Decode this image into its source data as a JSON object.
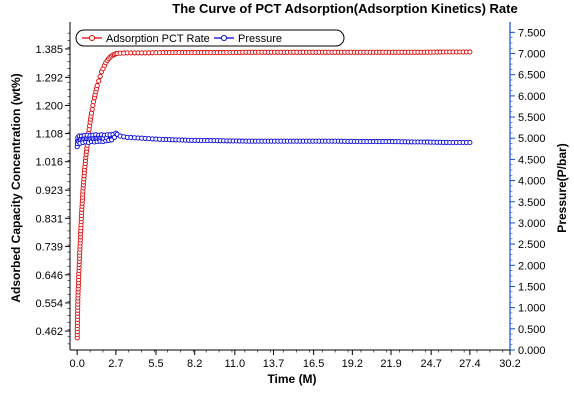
{
  "chart_data": {
    "type": "line",
    "title": "The Curve of PCT Adsorption(Adsorption Kinetics) Rate",
    "xlabel": "Time (M)",
    "ylabel_left": "Adsorbed Capacity Concentration (wt%)",
    "ylabel_right": "Pressure(P/bar)",
    "x_ticks": [
      "0.0",
      "2.7",
      "5.5",
      "8.2",
      "11.0",
      "13.7",
      "16.5",
      "19.2",
      "21.9",
      "24.7",
      "27.4",
      "30.2"
    ],
    "xlim": [
      -0.5,
      30.2
    ],
    "y_left_ticks": [
      "0.462",
      "0.554",
      "0.646",
      "0.739",
      "0.831",
      "0.923",
      "1.016",
      "1.108",
      "1.200",
      "1.292",
      "1.385"
    ],
    "ylim_left": [
      0.4,
      1.46
    ],
    "y_right_ticks": [
      "0.000",
      "0.500",
      "1.000",
      "1.500",
      "2.000",
      "2.500",
      "3.000",
      "3.500",
      "4.000",
      "4.500",
      "5.000",
      "5.500",
      "6.000",
      "6.500",
      "7.000",
      "7.500"
    ],
    "ylim_right": [
      0.0,
      7.65
    ],
    "legend": {
      "placement": "top-left"
    },
    "colors": {
      "adsorption": "#e00000",
      "pressure": "#0000e0",
      "right_axis": "#1a4fd0"
    },
    "series": [
      {
        "name": "Adsorption PCT Rate",
        "axis": "left",
        "x": [
          0.0,
          0.05,
          0.1,
          0.15,
          0.2,
          0.25,
          0.3,
          0.4,
          0.5,
          0.6,
          0.7,
          0.8,
          0.9,
          1.0,
          1.1,
          1.2,
          1.3,
          1.4,
          1.5,
          1.6,
          1.7,
          1.8,
          1.9,
          2.0,
          2.1,
          2.2,
          2.3,
          2.4,
          2.5,
          2.6,
          2.7,
          2.8,
          3.0,
          3.5,
          4.0,
          5.0,
          6.0,
          8.0,
          10.0,
          12.0,
          14.0,
          16.0,
          18.0,
          20.0,
          22.0,
          24.0,
          26.0,
          27.4
        ],
        "values": [
          0.44,
          0.57,
          0.63,
          0.69,
          0.74,
          0.79,
          0.84,
          0.92,
          0.98,
          1.03,
          1.07,
          1.11,
          1.145,
          1.175,
          1.2,
          1.225,
          1.245,
          1.265,
          1.28,
          1.295,
          1.31,
          1.32,
          1.33,
          1.34,
          1.347,
          1.353,
          1.358,
          1.362,
          1.365,
          1.367,
          1.369,
          1.37,
          1.371,
          1.372,
          1.372,
          1.372,
          1.373,
          1.373,
          1.373,
          1.374,
          1.374,
          1.374,
          1.374,
          1.374,
          1.374,
          1.374,
          1.375,
          1.375
        ]
      },
      {
        "name": "Pressure",
        "axis": "right",
        "x": [
          0.0,
          0.05,
          0.1,
          0.15,
          0.2,
          0.3,
          0.4,
          0.5,
          0.6,
          0.7,
          0.8,
          0.9,
          1.0,
          1.1,
          1.2,
          1.3,
          1.4,
          1.5,
          1.6,
          1.7,
          1.8,
          1.9,
          2.0,
          2.1,
          2.2,
          2.3,
          2.4,
          2.5,
          2.6,
          2.7,
          2.8,
          3.0,
          3.5,
          4.0,
          5.0,
          6.0,
          8.0,
          10.0,
          12.0,
          14.0,
          16.0,
          18.0,
          20.0,
          22.0,
          24.0,
          26.0,
          27.4
        ],
        "values": [
          4.8,
          5.02,
          4.92,
          5.05,
          4.88,
          5.05,
          4.9,
          5.06,
          4.91,
          5.07,
          4.9,
          5.06,
          4.92,
          5.07,
          4.91,
          5.08,
          4.92,
          5.07,
          4.93,
          5.08,
          4.92,
          5.07,
          4.94,
          5.08,
          4.95,
          5.08,
          4.96,
          5.09,
          5.02,
          5.12,
          5.09,
          5.05,
          5.02,
          5.01,
          4.99,
          4.97,
          4.95,
          4.94,
          4.93,
          4.93,
          4.93,
          4.93,
          4.92,
          4.92,
          4.91,
          4.9,
          4.9
        ]
      }
    ]
  }
}
